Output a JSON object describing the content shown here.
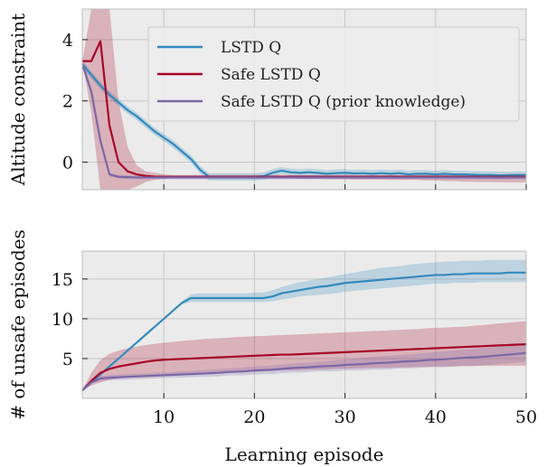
{
  "colors": {
    "axes_bg": "#ebebeb",
    "grid": "#c7c7c7",
    "lstd": "#348abd",
    "safe": "#a60628",
    "prior": "#7a68a6"
  },
  "chart_data": [
    {
      "type": "line",
      "ylabel": "Altitude constraint",
      "xlabel": "",
      "xlim": [
        1,
        50
      ],
      "ylim": [
        -0.9,
        5.0
      ],
      "xticks": [
        10,
        20,
        30,
        40,
        50
      ],
      "yticks": [
        0,
        2,
        4
      ],
      "ytick_labels": [
        "0",
        "2",
        "4"
      ],
      "show_x_tick_labels": false,
      "grid": true,
      "legend": {
        "placement": "top-right",
        "entries": [
          "LSTD Q",
          "Safe LSTD Q",
          "Safe LSTD Q (prior knowledge)"
        ]
      },
      "series": [
        {
          "name": "LSTD Q",
          "color": "#348abd",
          "x": [
            1,
            2,
            3,
            4,
            5,
            6,
            7,
            8,
            9,
            10,
            11,
            12,
            13,
            14,
            15,
            16,
            17,
            18,
            19,
            20,
            21,
            22,
            23,
            24,
            25,
            26,
            27,
            28,
            29,
            30,
            31,
            32,
            33,
            34,
            35,
            36,
            37,
            38,
            39,
            40,
            41,
            42,
            43,
            44,
            45,
            46,
            47,
            48,
            49,
            50
          ],
          "values": [
            3.2,
            2.85,
            2.5,
            2.2,
            1.95,
            1.7,
            1.5,
            1.25,
            1.0,
            0.8,
            0.6,
            0.35,
            0.1,
            -0.25,
            -0.48,
            -0.48,
            -0.48,
            -0.48,
            -0.48,
            -0.48,
            -0.46,
            -0.35,
            -0.28,
            -0.33,
            -0.35,
            -0.33,
            -0.35,
            -0.38,
            -0.36,
            -0.35,
            -0.37,
            -0.36,
            -0.38,
            -0.36,
            -0.38,
            -0.36,
            -0.4,
            -0.38,
            -0.38,
            -0.4,
            -0.38,
            -0.4,
            -0.4,
            -0.41,
            -0.42,
            -0.42,
            -0.43,
            -0.43,
            -0.42,
            -0.42
          ],
          "band": 0.12
        },
        {
          "name": "Safe LSTD Q",
          "color": "#a60628",
          "x": [
            1,
            2,
            3,
            4,
            5,
            6,
            7,
            8,
            9,
            10,
            11,
            12,
            13,
            14,
            15,
            16,
            17,
            18,
            19,
            20,
            21,
            22,
            23,
            24,
            25,
            26,
            27,
            28,
            29,
            30,
            31,
            32,
            33,
            34,
            35,
            36,
            37,
            38,
            39,
            40,
            41,
            42,
            43,
            44,
            45,
            46,
            47,
            48,
            49,
            50
          ],
          "values": [
            3.3,
            3.3,
            3.95,
            1.2,
            0.0,
            -0.3,
            -0.4,
            -0.45,
            -0.47,
            -0.48,
            -0.48,
            -0.48,
            -0.48,
            -0.48,
            -0.48,
            -0.48,
            -0.48,
            -0.48,
            -0.48,
            -0.48,
            -0.48,
            -0.48,
            -0.48,
            -0.48,
            -0.48,
            -0.48,
            -0.48,
            -0.48,
            -0.48,
            -0.48,
            -0.48,
            -0.48,
            -0.48,
            -0.48,
            -0.48,
            -0.48,
            -0.48,
            -0.48,
            -0.48,
            -0.48,
            -0.48,
            -0.48,
            -0.48,
            -0.48,
            -0.48,
            -0.48,
            -0.48,
            -0.48,
            -0.48,
            -0.48
          ],
          "band_upper": [
            3.3,
            5.0,
            5.0,
            5.0,
            2.0,
            0.5,
            -0.1,
            -0.3,
            -0.35,
            -0.4,
            -0.42,
            -0.42,
            -0.42,
            -0.42,
            -0.42,
            -0.42,
            -0.42,
            -0.42,
            -0.42,
            -0.42,
            -0.42,
            -0.42,
            -0.42,
            -0.42,
            -0.42,
            -0.42,
            -0.42,
            -0.42,
            -0.42,
            -0.42,
            -0.42,
            -0.42,
            -0.42,
            -0.42,
            -0.42,
            -0.42,
            -0.42,
            -0.42,
            -0.42,
            -0.42,
            -0.42,
            -0.42,
            -0.42,
            -0.42,
            -0.42,
            -0.42,
            -0.4,
            -0.38,
            -0.38,
            -0.38
          ],
          "band_lower": [
            3.3,
            1.6,
            -0.9,
            -0.9,
            -0.9,
            -0.9,
            -0.8,
            -0.65,
            -0.58,
            -0.55,
            -0.54,
            -0.54,
            -0.54,
            -0.54,
            -0.54,
            -0.54,
            -0.54,
            -0.54,
            -0.54,
            -0.54,
            -0.54,
            -0.54,
            -0.54,
            -0.54,
            -0.55,
            -0.55,
            -0.55,
            -0.56,
            -0.56,
            -0.56,
            -0.57,
            -0.57,
            -0.57,
            -0.57,
            -0.58,
            -0.58,
            -0.58,
            -0.58,
            -0.6,
            -0.6,
            -0.62,
            -0.62,
            -0.64,
            -0.64,
            -0.65,
            -0.65,
            -0.66,
            -0.66,
            -0.66,
            -0.66
          ]
        },
        {
          "name": "Safe LSTD Q (prior knowledge)",
          "color": "#7a68a6",
          "x": [
            1,
            2,
            3,
            4,
            5,
            6,
            7,
            8,
            9,
            10,
            11,
            12,
            13,
            14,
            15,
            16,
            17,
            18,
            19,
            20,
            21,
            22,
            23,
            24,
            25,
            26,
            27,
            28,
            29,
            30,
            31,
            32,
            33,
            34,
            35,
            36,
            37,
            38,
            39,
            40,
            41,
            42,
            43,
            44,
            45,
            46,
            47,
            48,
            49,
            50
          ],
          "values": [
            3.2,
            2.3,
            0.7,
            -0.4,
            -0.48,
            -0.49,
            -0.5,
            -0.5,
            -0.5,
            -0.5,
            -0.5,
            -0.5,
            -0.5,
            -0.5,
            -0.5,
            -0.5,
            -0.5,
            -0.5,
            -0.5,
            -0.5,
            -0.5,
            -0.5,
            -0.5,
            -0.5,
            -0.5,
            -0.5,
            -0.5,
            -0.5,
            -0.5,
            -0.5,
            -0.5,
            -0.5,
            -0.5,
            -0.5,
            -0.5,
            -0.5,
            -0.5,
            -0.5,
            -0.5,
            -0.5,
            -0.5,
            -0.5,
            -0.5,
            -0.5,
            -0.5,
            -0.5,
            -0.5,
            -0.5,
            -0.5,
            -0.5
          ],
          "band": 0.06
        }
      ]
    },
    {
      "type": "line",
      "ylabel": "# of unsafe episodes",
      "xlabel": "Learning episode",
      "xlim": [
        1,
        50
      ],
      "ylim": [
        0,
        18.5
      ],
      "xticks": [
        10,
        20,
        30,
        40,
        50
      ],
      "xtick_labels": [
        "10",
        "20",
        "30",
        "40",
        "50"
      ],
      "yticks": [
        5,
        10,
        15
      ],
      "ytick_labels": [
        "5",
        "10",
        "15"
      ],
      "grid": true,
      "series": [
        {
          "name": "LSTD Q",
          "color": "#348abd",
          "x": [
            1,
            2,
            3,
            4,
            5,
            6,
            7,
            8,
            9,
            10,
            11,
            12,
            13,
            14,
            15,
            16,
            17,
            18,
            19,
            20,
            21,
            22,
            23,
            24,
            25,
            26,
            27,
            28,
            29,
            30,
            31,
            32,
            33,
            34,
            35,
            36,
            37,
            38,
            39,
            40,
            41,
            42,
            43,
            44,
            45,
            46,
            47,
            48,
            49,
            50
          ],
          "values": [
            1.0,
            2.0,
            3.0,
            4.0,
            5.0,
            6.0,
            7.0,
            8.0,
            9.0,
            10.0,
            11.0,
            12.0,
            12.6,
            12.6,
            12.6,
            12.6,
            12.6,
            12.6,
            12.6,
            12.6,
            12.6,
            12.8,
            13.2,
            13.4,
            13.6,
            13.8,
            14.0,
            14.1,
            14.3,
            14.5,
            14.6,
            14.7,
            14.8,
            14.9,
            15.0,
            15.1,
            15.2,
            15.3,
            15.4,
            15.5,
            15.5,
            15.6,
            15.6,
            15.7,
            15.7,
            15.7,
            15.7,
            15.8,
            15.8,
            15.8
          ],
          "band_upper": [
            1.0,
            2.0,
            3.0,
            4.0,
            5.0,
            6.0,
            7.0,
            8.0,
            9.0,
            10.0,
            11.0,
            12.2,
            13.1,
            13.2,
            13.2,
            13.2,
            13.2,
            13.2,
            13.2,
            13.3,
            13.3,
            13.6,
            14.0,
            14.3,
            14.6,
            14.8,
            15.0,
            15.2,
            15.4,
            15.6,
            15.8,
            16.0,
            16.2,
            16.4,
            16.5,
            16.6,
            16.8,
            16.9,
            17.0,
            17.1,
            17.2,
            17.2,
            17.3,
            17.3,
            17.3,
            17.4,
            17.4,
            17.4,
            17.4,
            17.4
          ],
          "band_lower": [
            1.0,
            2.0,
            3.0,
            4.0,
            5.0,
            6.0,
            7.0,
            8.0,
            9.0,
            10.0,
            11.0,
            11.8,
            12.1,
            12.1,
            12.1,
            12.1,
            12.1,
            12.1,
            12.1,
            12.1,
            12.1,
            12.2,
            12.4,
            12.6,
            12.8,
            12.9,
            13.0,
            13.1,
            13.2,
            13.4,
            13.5,
            13.6,
            13.7,
            13.8,
            13.9,
            14.0,
            14.1,
            14.2,
            14.3,
            14.4,
            14.4,
            14.5,
            14.5,
            14.5,
            14.6,
            14.6,
            14.6,
            14.6,
            14.6,
            14.6
          ]
        },
        {
          "name": "Safe LSTD Q",
          "color": "#a60628",
          "x": [
            1,
            2,
            3,
            4,
            5,
            6,
            7,
            8,
            9,
            10,
            11,
            12,
            13,
            14,
            15,
            16,
            17,
            18,
            19,
            20,
            21,
            22,
            23,
            24,
            25,
            26,
            27,
            28,
            29,
            30,
            31,
            32,
            33,
            34,
            35,
            36,
            37,
            38,
            39,
            40,
            41,
            42,
            43,
            44,
            45,
            46,
            47,
            48,
            49,
            50
          ],
          "values": [
            1.0,
            2.2,
            3.2,
            3.7,
            4.0,
            4.2,
            4.4,
            4.6,
            4.75,
            4.85,
            4.9,
            4.95,
            5.0,
            5.05,
            5.1,
            5.15,
            5.2,
            5.25,
            5.3,
            5.35,
            5.4,
            5.45,
            5.5,
            5.5,
            5.55,
            5.6,
            5.65,
            5.7,
            5.75,
            5.8,
            5.85,
            5.9,
            5.95,
            6.0,
            6.05,
            6.1,
            6.15,
            6.2,
            6.25,
            6.3,
            6.35,
            6.4,
            6.45,
            6.5,
            6.55,
            6.6,
            6.65,
            6.7,
            6.75,
            6.8
          ],
          "band_upper": [
            1.0,
            3.2,
            4.8,
            5.6,
            6.0,
            6.3,
            6.5,
            6.7,
            6.85,
            7.0,
            7.1,
            7.2,
            7.3,
            7.4,
            7.5,
            7.55,
            7.6,
            7.7,
            7.75,
            7.8,
            7.85,
            7.9,
            7.95,
            8.0,
            8.05,
            8.1,
            8.15,
            8.2,
            8.25,
            8.3,
            8.35,
            8.4,
            8.45,
            8.5,
            8.55,
            8.6,
            8.65,
            8.7,
            8.8,
            8.85,
            8.9,
            8.95,
            9.0,
            9.1,
            9.2,
            9.3,
            9.4,
            9.5,
            9.6,
            9.7
          ],
          "band_lower": [
            1.0,
            1.6,
            2.0,
            2.3,
            2.5,
            2.6,
            2.7,
            2.8,
            2.85,
            2.9,
            2.95,
            3.0,
            3.0,
            3.05,
            3.1,
            3.15,
            3.2,
            3.25,
            3.3,
            3.35,
            3.4,
            3.45,
            3.5,
            3.5,
            3.55,
            3.6,
            3.6,
            3.65,
            3.7,
            3.7,
            3.75,
            3.8,
            3.8,
            3.85,
            3.85,
            3.9,
            3.9,
            3.95,
            3.95,
            4.0,
            4.0,
            4.0,
            4.05,
            4.05,
            4.1,
            4.1,
            4.1,
            4.1,
            4.1,
            4.1
          ]
        },
        {
          "name": "Safe LSTD Q (prior knowledge)",
          "color": "#7a68a6",
          "x": [
            1,
            2,
            3,
            4,
            5,
            6,
            7,
            8,
            9,
            10,
            11,
            12,
            13,
            14,
            15,
            16,
            17,
            18,
            19,
            20,
            21,
            22,
            23,
            24,
            25,
            26,
            27,
            28,
            29,
            30,
            31,
            32,
            33,
            34,
            35,
            36,
            37,
            38,
            39,
            40,
            41,
            42,
            43,
            44,
            45,
            46,
            47,
            48,
            49,
            50
          ],
          "values": [
            1.0,
            2.0,
            2.5,
            2.6,
            2.65,
            2.7,
            2.75,
            2.8,
            2.85,
            2.9,
            2.95,
            3.0,
            3.05,
            3.1,
            3.15,
            3.2,
            3.3,
            3.35,
            3.4,
            3.5,
            3.55,
            3.6,
            3.7,
            3.8,
            3.85,
            3.9,
            4.0,
            4.05,
            4.1,
            4.2,
            4.25,
            4.3,
            4.4,
            4.45,
            4.5,
            4.6,
            4.65,
            4.7,
            4.8,
            4.85,
            4.9,
            5.0,
            5.1,
            5.15,
            5.2,
            5.3,
            5.4,
            5.5,
            5.6,
            5.7
          ],
          "band_upper": [
            1.0,
            2.2,
            2.8,
            2.9,
            3.0,
            3.05,
            3.1,
            3.15,
            3.2,
            3.25,
            3.3,
            3.4,
            3.45,
            3.5,
            3.6,
            3.65,
            3.75,
            3.8,
            3.9,
            4.0,
            4.05,
            4.15,
            4.25,
            4.35,
            4.45,
            4.5,
            4.6,
            4.7,
            4.8,
            4.9,
            5.0,
            5.1,
            5.2,
            5.3,
            5.35,
            5.45,
            5.55,
            5.6,
            5.7,
            5.8,
            5.9,
            6.0,
            6.1,
            6.2,
            6.3,
            6.4,
            6.5,
            6.6,
            6.7,
            6.8
          ],
          "band_lower": [
            1.0,
            1.8,
            2.2,
            2.3,
            2.3,
            2.35,
            2.4,
            2.45,
            2.5,
            2.55,
            2.6,
            2.6,
            2.65,
            2.7,
            2.7,
            2.75,
            2.85,
            2.9,
            2.9,
            3.0,
            3.05,
            3.05,
            3.15,
            3.25,
            3.25,
            3.3,
            3.4,
            3.4,
            3.4,
            3.5,
            3.5,
            3.5,
            3.6,
            3.6,
            3.65,
            3.75,
            3.75,
            3.8,
            3.9,
            3.9,
            3.9,
            4.0,
            4.1,
            4.1,
            4.1,
            4.2,
            4.3,
            4.4,
            4.5,
            4.6
          ]
        }
      ]
    }
  ]
}
